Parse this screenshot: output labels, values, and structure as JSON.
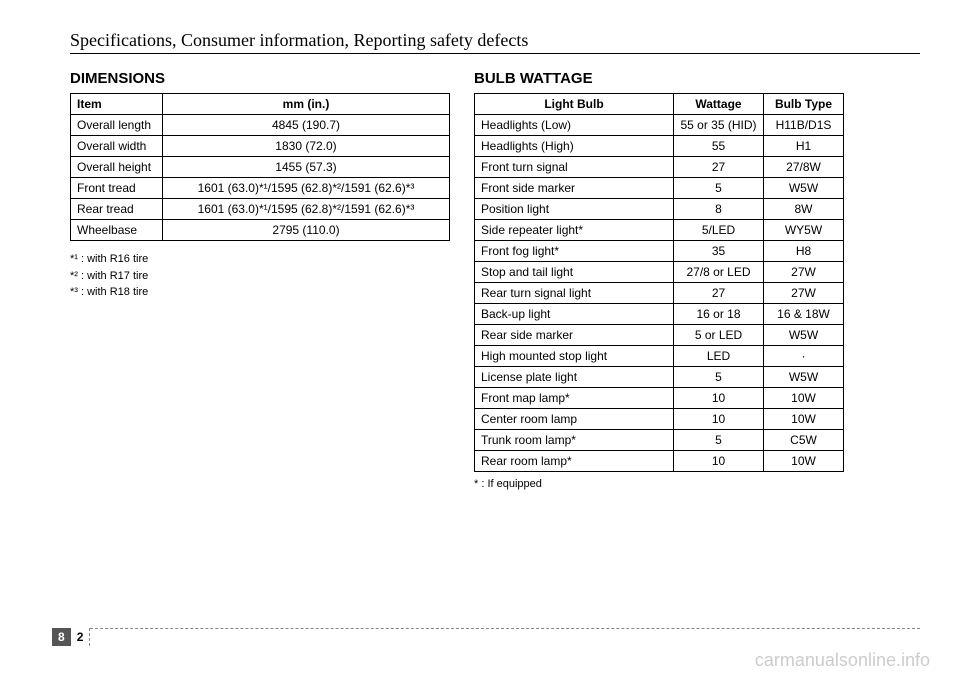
{
  "header": {
    "title": "Specifications, Consumer information, Reporting safety defects"
  },
  "dimensions": {
    "title": "DIMENSIONS",
    "headers": {
      "item": "Item",
      "value": "mm (in.)"
    },
    "rows": [
      {
        "item": "Overall length",
        "value": "4845 (190.7)"
      },
      {
        "item": "Overall width",
        "value": "1830 (72.0)"
      },
      {
        "item": "Overall height",
        "value": "1455 (57.3)"
      },
      {
        "item": "Front tread",
        "value": "1601 (63.0)*¹/1595 (62.8)*²/1591 (62.6)*³"
      },
      {
        "item": "Rear tread",
        "value": "1601 (63.0)*¹/1595 (62.8)*²/1591 (62.6)*³"
      },
      {
        "item": "Wheelbase",
        "value": "2795 (110.0)"
      }
    ],
    "footnotes": [
      {
        "mark": "*¹",
        "text": " : with R16 tire"
      },
      {
        "mark": "*²",
        "text": " : with R17 tire"
      },
      {
        "mark": "*³",
        "text": " : with R18 tire"
      }
    ]
  },
  "bulb": {
    "title": "BULB WATTAGE",
    "headers": {
      "item": "Light Bulb",
      "wattage": "Wattage",
      "type": "Bulb Type"
    },
    "rows": [
      {
        "item": "Headlights (Low)",
        "wattage": "55 or 35 (HID)",
        "type": "H11B/D1S"
      },
      {
        "item": "Headlights (High)",
        "wattage": "55",
        "type": "H1"
      },
      {
        "item": "Front turn signal",
        "wattage": "27",
        "type": "27/8W"
      },
      {
        "item": "Front side marker",
        "wattage": "5",
        "type": "W5W"
      },
      {
        "item": "Position light",
        "wattage": "8",
        "type": "8W"
      },
      {
        "item": "Side repeater light*",
        "wattage": "5/LED",
        "type": "WY5W"
      },
      {
        "item": "Front fog light*",
        "wattage": "35",
        "type": "H8"
      },
      {
        "item": "Stop and tail light",
        "wattage": "27/8 or LED",
        "type": "27W"
      },
      {
        "item": "Rear turn signal light",
        "wattage": "27",
        "type": "27W"
      },
      {
        "item": "Back-up light",
        "wattage": "16 or 18",
        "type": "16 & 18W"
      },
      {
        "item": "Rear side marker",
        "wattage": "5 or LED",
        "type": "W5W"
      },
      {
        "item": "High mounted stop light",
        "wattage": "LED",
        "type": "·"
      },
      {
        "item": "License plate light",
        "wattage": "5",
        "type": "W5W"
      },
      {
        "item": "Front map lamp*",
        "wattage": "10",
        "type": "10W"
      },
      {
        "item": "Center room lamp",
        "wattage": "10",
        "type": "10W"
      },
      {
        "item": "Trunk room lamp*",
        "wattage": "5",
        "type": "C5W"
      },
      {
        "item": "Rear room lamp*",
        "wattage": "10",
        "type": "10W"
      }
    ],
    "footnote": "* : If equipped"
  },
  "pagenum": {
    "chapter": "8",
    "page": "2"
  },
  "watermark": "carmanualsonline.info"
}
